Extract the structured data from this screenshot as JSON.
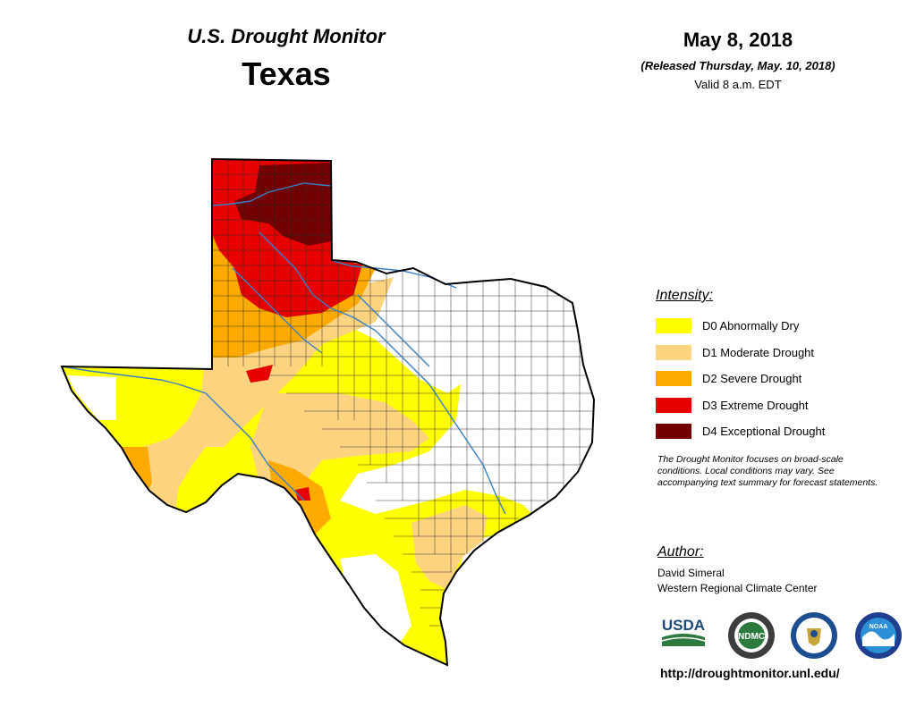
{
  "header": {
    "subtitle": "U.S. Drought Monitor",
    "state": "Texas",
    "date": "May 8, 2018",
    "released": "(Released Thursday, May. 10, 2018)",
    "valid": "Valid 8 a.m. EDT"
  },
  "legend": {
    "title": "Intensity:",
    "items": [
      {
        "label": "D0 Abnormally Dry",
        "color": "#ffff00"
      },
      {
        "label": "D1 Moderate Drought",
        "color": "#fcd37f"
      },
      {
        "label": "D2 Severe Drought",
        "color": "#ffaa00"
      },
      {
        "label": "D3 Extreme Drought",
        "color": "#e60000"
      },
      {
        "label": "D4 Exceptional Drought",
        "color": "#730000"
      }
    ]
  },
  "note": "The Drought Monitor focuses on broad-scale conditions. Local conditions may vary. See accompanying text summary for forecast statements.",
  "author": {
    "title": "Author:",
    "name": "David Simeral",
    "org": "Western Regional Climate Center"
  },
  "logos": {
    "usda": "USDA",
    "ndmc": "NDMC",
    "commerce_icon": "doc-seal-icon",
    "noaa": "NOAA"
  },
  "url": "http://droughtmonitor.unl.edu/",
  "map_colors": {
    "river": "#3a7fc1",
    "county_line": "#333333",
    "outline": "#000000"
  }
}
